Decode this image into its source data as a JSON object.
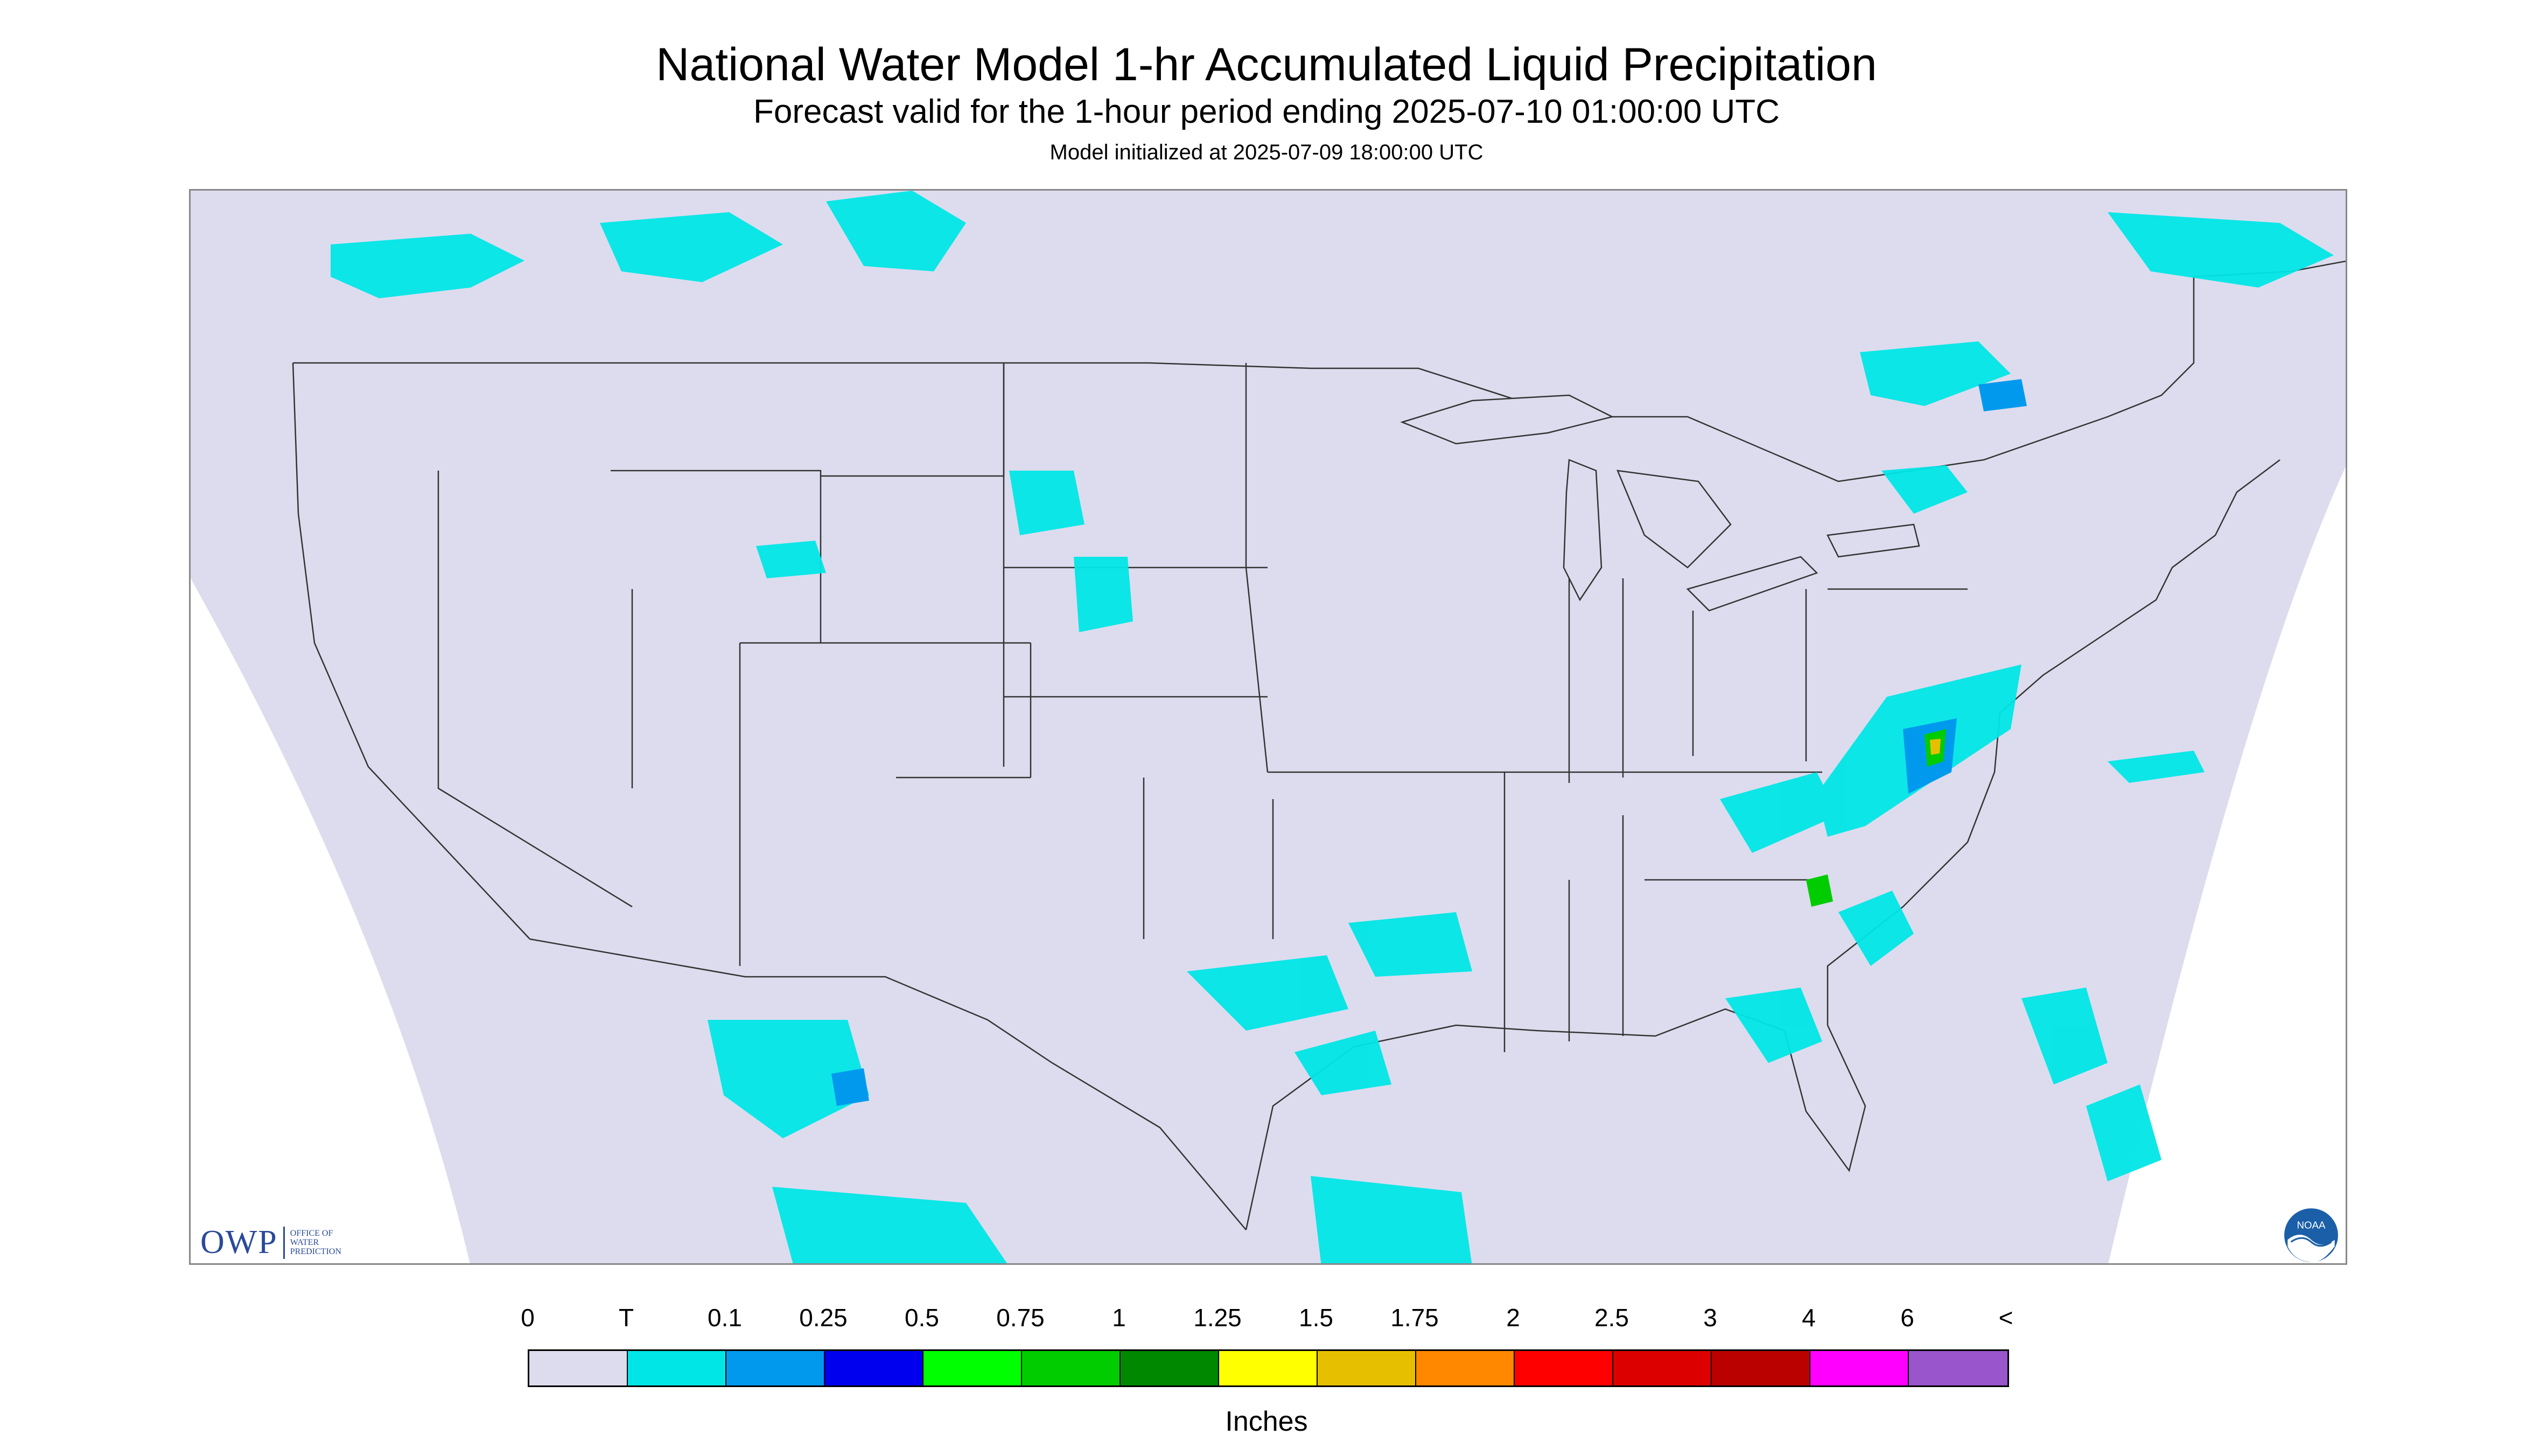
{
  "header": {
    "title": "National Water Model 1-hr Accumulated Liquid Precipitation",
    "subtitle": "Forecast valid for the 1-hour period ending 2025-07-10 01:00:00 UTC",
    "init": "Model initialized at 2025-07-09 18:00:00 UTC"
  },
  "logos": {
    "owp_main": "OWP",
    "owp_sub_line1": "OFFICE OF",
    "owp_sub_line2": "WATER",
    "owp_sub_line3": "PREDICTION",
    "noaa": "NOAA"
  },
  "legend": {
    "labels": [
      "0",
      "T",
      "0.1",
      "0.25",
      "0.5",
      "0.75",
      "1",
      "1.25",
      "1.5",
      "1.75",
      "2",
      "2.5",
      "3",
      "4",
      "6",
      "<"
    ],
    "colors": [
      "#dcdcee",
      "#00e6e6",
      "#0099ee",
      "#0000ee",
      "#00ff00",
      "#00cc00",
      "#008800",
      "#ffff00",
      "#e6c000",
      "#ff8800",
      "#ff0000",
      "#dd0000",
      "#bb0000",
      "#ff00ff",
      "#9955cc"
    ],
    "units": "Inches"
  },
  "map": {
    "background_color": "#dcdcee",
    "outside_domain_color": "#ffffff",
    "boundary_color": "#222222"
  }
}
